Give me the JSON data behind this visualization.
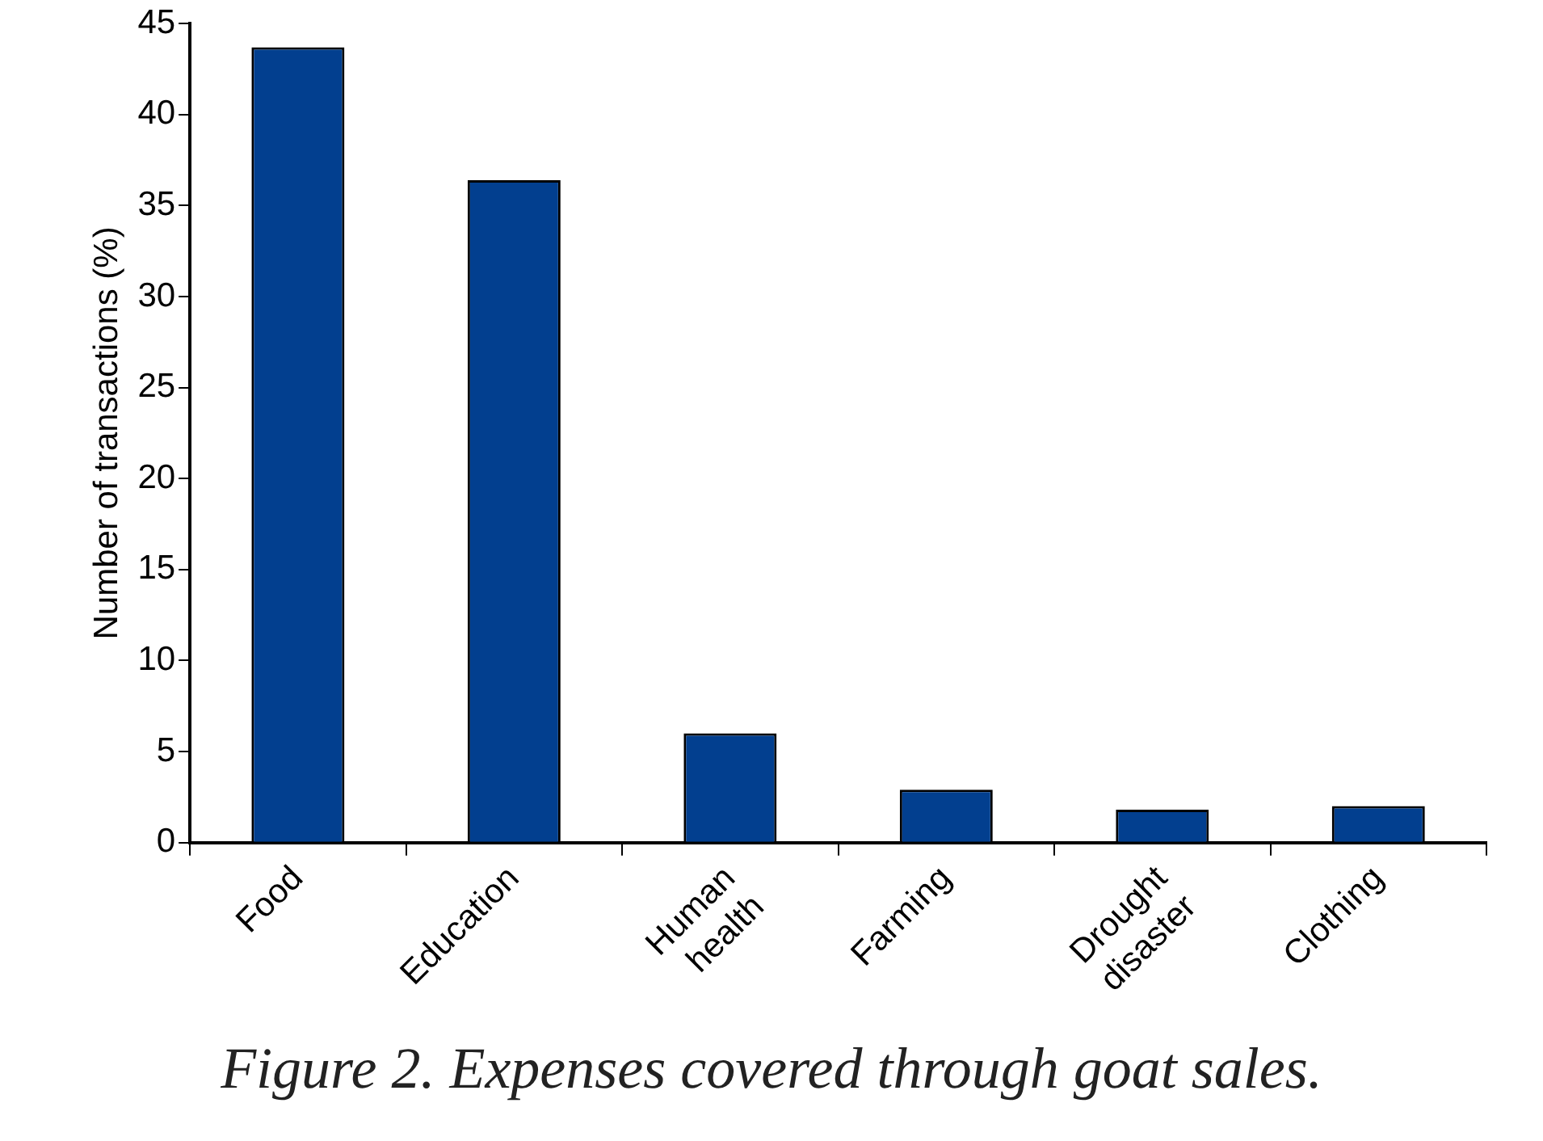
{
  "chart_data": {
    "type": "bar",
    "title": "Figure 2. Expenses covered through goat sales.",
    "ylabel": "Number of transactions (%)",
    "categories": [
      "Food",
      "Education",
      "Human health",
      "Farming",
      "Drought disaster",
      "Clothing"
    ],
    "values": [
      43.7,
      36.4,
      6.0,
      2.9,
      1.8,
      2.0
    ],
    "color": "#023f8f",
    "ylim": [
      0,
      45
    ],
    "yticks": [
      0,
      5,
      10,
      15,
      20,
      25,
      30,
      35,
      40,
      45
    ],
    "grid": false,
    "legend": false
  }
}
